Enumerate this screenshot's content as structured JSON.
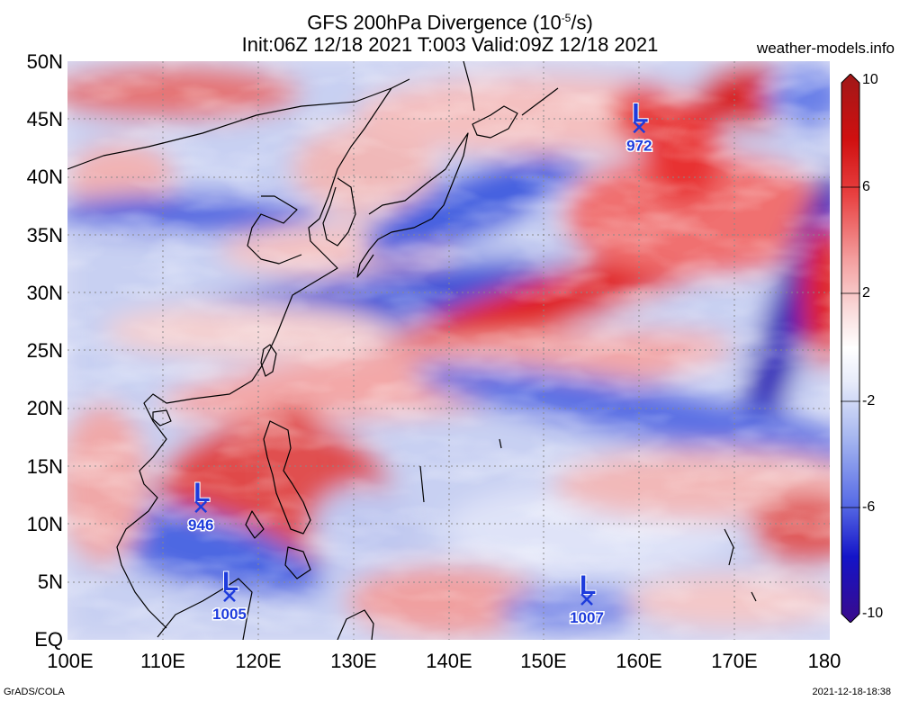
{
  "header": {
    "title_main": "GFS 200hPa Divergence (10",
    "title_exp": "-5",
    "title_tail": "/s)",
    "subtitle": "Init:06Z 12/18 2021 T:003 Valid:09Z 12/18 2021",
    "site": "weather-models.info"
  },
  "axes": {
    "lat_labels": [
      "50N",
      "45N",
      "40N",
      "35N",
      "30N",
      "25N",
      "20N",
      "15N",
      "10N",
      "5N",
      "EQ"
    ],
    "lon_labels": [
      "100E",
      "110E",
      "120E",
      "130E",
      "140E",
      "150E",
      "160E",
      "170E",
      "180"
    ]
  },
  "colorbar": {
    "labels": [
      "10",
      "6",
      "2",
      "-2",
      "-6",
      "-10"
    ],
    "colors": [
      "#3a0a8a",
      "#1414c8",
      "#5a6ee6",
      "#a8b8f0",
      "#e8ecfa",
      "#ffffff",
      "#fae0e0",
      "#f4a0a0",
      "#e84040",
      "#d01010",
      "#a01818"
    ]
  },
  "lows": [
    {
      "pressure": "946",
      "lon": 114,
      "lat": 11.5
    },
    {
      "pressure": "972",
      "lon": 160,
      "lat": 44.3
    },
    {
      "pressure": "1005",
      "lon": 117,
      "lat": 3.8
    },
    {
      "pressure": "1007",
      "lon": 154.5,
      "lat": 3.5
    }
  ],
  "footer": {
    "credit": "GrADS/COLA",
    "timestamp": "2021-12-18-18:38"
  },
  "colors": {
    "low_marker": "#1e3cdc",
    "coast": "#000000"
  }
}
